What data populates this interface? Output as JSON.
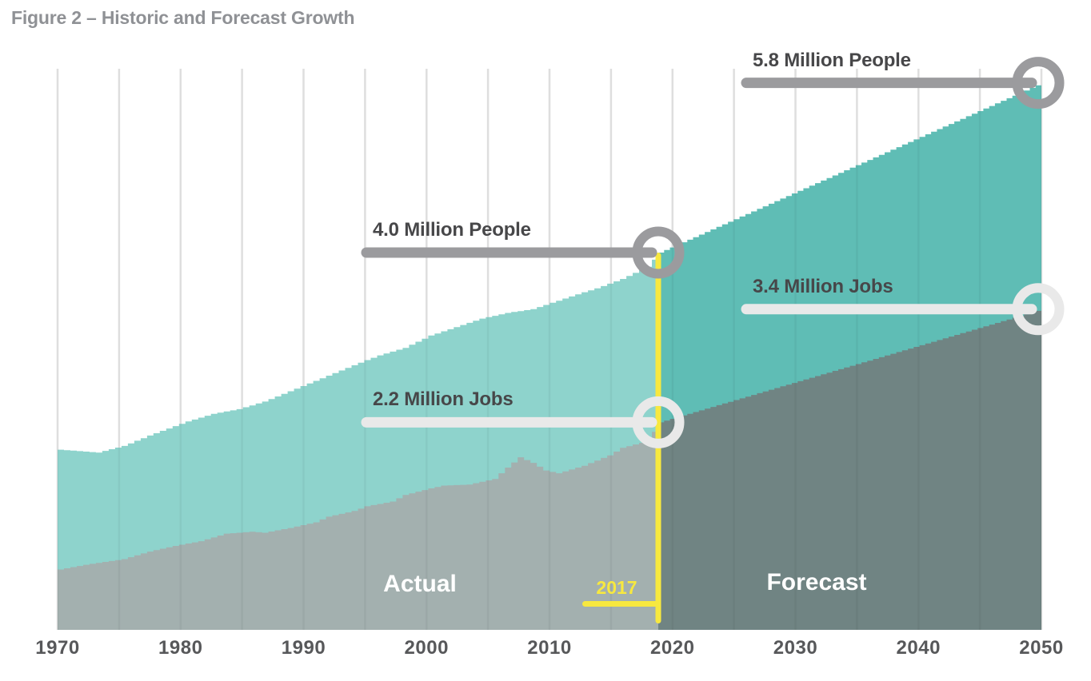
{
  "title": "Figure 2 – Historic and Forecast Growth",
  "colors": {
    "people_historic": "#8ed3cc",
    "people_forecast": "#5fbdb5",
    "jobs_historic": "#a3b0af",
    "jobs_forecast": "#708483",
    "divider_yellow": "#f7e83f",
    "annotation_gray": "#9b9b9e",
    "annotation_light": "#e9e9e9",
    "annotation_text": "#474749",
    "axis_text": "#57585a",
    "title_text": "#8f9195",
    "gridline": "#e8e8e8"
  },
  "chart_data": {
    "type": "area",
    "title": "Figure 2 – Historic and Forecast Growth",
    "xlabel": "",
    "ylabel": "",
    "unit": "millions",
    "grid": true,
    "gridline_interval_years": 5,
    "legend_position": "none",
    "x_axis": {
      "range": [
        1970,
        2050
      ],
      "ticks": [
        1970,
        1980,
        1990,
        2000,
        2010,
        2020,
        2030,
        2040,
        2050
      ]
    },
    "divider": {
      "year": 2017,
      "label": "2017",
      "left_zone_label": "Actual",
      "right_zone_label": "Forecast"
    },
    "series": [
      {
        "name": "People",
        "historic": [
          [
            1970,
            1.91
          ],
          [
            1972,
            1.89
          ],
          [
            1973,
            1.88
          ],
          [
            1975,
            1.95
          ],
          [
            1977,
            2.06
          ],
          [
            1979,
            2.16
          ],
          [
            1980,
            2.21
          ],
          [
            1982,
            2.29
          ],
          [
            1984,
            2.34
          ],
          [
            1986,
            2.42
          ],
          [
            1988,
            2.53
          ],
          [
            1990,
            2.64
          ],
          [
            1992,
            2.75
          ],
          [
            1994,
            2.86
          ],
          [
            1995,
            2.91
          ],
          [
            1997,
            2.99
          ],
          [
            1999,
            3.12
          ],
          [
            2001,
            3.21
          ],
          [
            2003,
            3.3
          ],
          [
            2005,
            3.36
          ],
          [
            2007,
            3.4
          ],
          [
            2009,
            3.49
          ],
          [
            2011,
            3.58
          ],
          [
            2012,
            3.62
          ],
          [
            2014,
            3.72
          ],
          [
            2016,
            3.85
          ],
          [
            2017,
            4.0
          ]
        ],
        "forecast": [
          [
            2017,
            4.0
          ],
          [
            2050,
            5.8
          ]
        ]
      },
      {
        "name": "Jobs",
        "historic": [
          [
            1970,
            0.64
          ],
          [
            1972,
            0.69
          ],
          [
            1975,
            0.75
          ],
          [
            1977,
            0.83
          ],
          [
            1979,
            0.89
          ],
          [
            1981,
            0.94
          ],
          [
            1983,
            1.02
          ],
          [
            1985,
            1.04
          ],
          [
            1986,
            1.03
          ],
          [
            1988,
            1.08
          ],
          [
            1990,
            1.14
          ],
          [
            1991,
            1.2
          ],
          [
            1993,
            1.26
          ],
          [
            1994,
            1.31
          ],
          [
            1996,
            1.36
          ],
          [
            1997,
            1.43
          ],
          [
            1999,
            1.5
          ],
          [
            2000,
            1.53
          ],
          [
            2002,
            1.54
          ],
          [
            2004,
            1.6
          ],
          [
            2005,
            1.72
          ],
          [
            2006,
            1.83
          ],
          [
            2007,
            1.77
          ],
          [
            2008,
            1.69
          ],
          [
            2009,
            1.66
          ],
          [
            2011,
            1.74
          ],
          [
            2013,
            1.85
          ],
          [
            2014,
            1.93
          ],
          [
            2016,
            2.0
          ],
          [
            2017,
            2.2
          ]
        ],
        "forecast": [
          [
            2017,
            2.2
          ],
          [
            2050,
            3.4
          ]
        ]
      }
    ],
    "annotations": [
      {
        "label": "5.8 Million People",
        "series": "People",
        "year": 2050,
        "value": 5.8,
        "style": "gray"
      },
      {
        "label": "4.0 Million People",
        "series": "People",
        "year": 2017,
        "value": 4.0,
        "style": "gray"
      },
      {
        "label": "3.4 Million Jobs",
        "series": "Jobs",
        "year": 2050,
        "value": 3.4,
        "style": "light"
      },
      {
        "label": "2.2 Million Jobs",
        "series": "Jobs",
        "year": 2017,
        "value": 2.2,
        "style": "light"
      }
    ]
  }
}
